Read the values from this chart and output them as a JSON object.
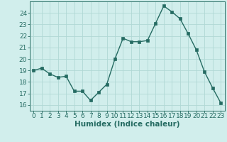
{
  "x": [
    0,
    1,
    2,
    3,
    4,
    5,
    6,
    7,
    8,
    9,
    10,
    11,
    12,
    13,
    14,
    15,
    16,
    17,
    18,
    19,
    20,
    21,
    22,
    23
  ],
  "y": [
    19.0,
    19.2,
    18.7,
    18.4,
    18.5,
    17.2,
    17.2,
    16.4,
    17.1,
    17.8,
    20.0,
    21.8,
    21.5,
    21.5,
    21.6,
    23.1,
    24.6,
    24.1,
    23.5,
    22.2,
    20.8,
    18.9,
    17.5,
    16.2
  ],
  "line_color": "#256b62",
  "marker_color": "#256b62",
  "bg_color": "#d1eeec",
  "grid_color": "#b0d8d5",
  "axis_color": "#256b62",
  "tick_color": "#256b62",
  "xlabel": "Humidex (Indice chaleur)",
  "ylim": [
    15.5,
    25.0
  ],
  "yticks": [
    16,
    17,
    18,
    19,
    20,
    21,
    22,
    23,
    24
  ],
  "xlim": [
    -0.5,
    23.5
  ],
  "label_fontsize": 7.5,
  "tick_fontsize": 6.5
}
